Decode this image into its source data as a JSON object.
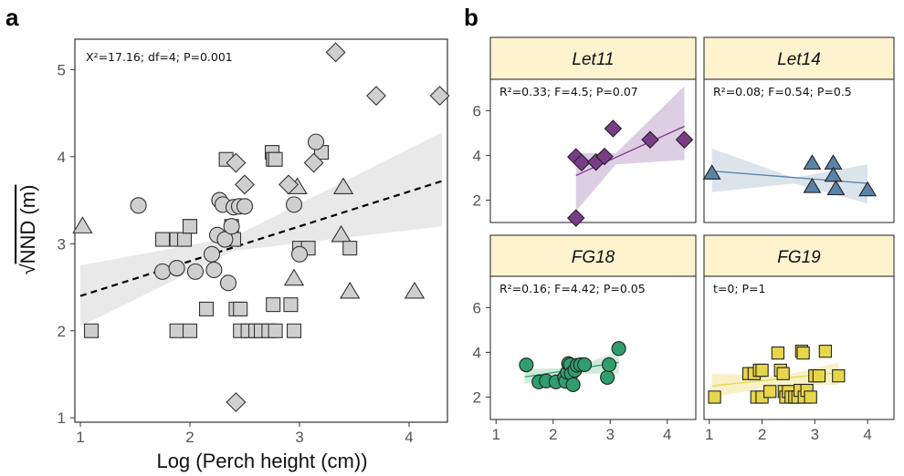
{
  "figure": {
    "panel_a_letter": "a",
    "panel_b_letter": "b"
  },
  "chart_data": [
    {
      "id": "a",
      "type": "scatter",
      "xlabel": "Log (Perch height (cm))",
      "ylabel": "NND (m)",
      "ylabel_prefix": "√",
      "xlim": [
        0.95,
        4.35
      ],
      "ylim": [
        0.95,
        5.35
      ],
      "xticks": [
        1,
        2,
        3,
        4
      ],
      "yticks": [
        1,
        2,
        3,
        4,
        5
      ],
      "grid": false,
      "annotation": "X²=17.16; df=4; P=0.001",
      "trend": {
        "intercept": 2.0,
        "slope": 0.4,
        "style": "dashed",
        "color": "#000000"
      },
      "ci_band": {
        "color": "#e5e5e5",
        "x": [
          1.0,
          2.4,
          4.3
        ],
        "lower": [
          2.05,
          2.92,
          3.2
        ],
        "upper": [
          2.75,
          3.08,
          4.28
        ]
      },
      "series": [
        {
          "shape": "triangle",
          "color": "#cfcfcf",
          "points": [
            [
              1.02,
              3.2
            ],
            [
              2.98,
              3.65
            ],
            [
              2.95,
              2.6
            ],
            [
              3.4,
              3.65
            ],
            [
              3.38,
              3.1
            ],
            [
              3.46,
              2.45
            ],
            [
              4.05,
              2.45
            ]
          ]
        },
        {
          "shape": "square",
          "color": "#cfcfcf",
          "points": [
            [
              1.1,
              2.0
            ],
            [
              1.75,
              3.05
            ],
            [
              1.88,
              3.05
            ],
            [
              1.95,
              3.05
            ],
            [
              1.88,
              2.0
            ],
            [
              2.0,
              3.2
            ],
            [
              2.0,
              3.2
            ],
            [
              2.0,
              2.0
            ],
            [
              2.15,
              2.25
            ],
            [
              2.33,
              3.97
            ],
            [
              2.38,
              3.2
            ],
            [
              2.4,
              3.05
            ],
            [
              2.42,
              2.25
            ],
            [
              2.46,
              2.25
            ],
            [
              2.46,
              2.0
            ],
            [
              2.53,
              2.0
            ],
            [
              2.6,
              2.0
            ],
            [
              2.65,
              2.0
            ],
            [
              2.72,
              2.0
            ],
            [
              2.78,
              2.0
            ],
            [
              2.95,
              2.0
            ],
            [
              2.75,
              4.05
            ],
            [
              2.76,
              3.97
            ],
            [
              2.78,
              3.97
            ],
            [
              2.92,
              2.3
            ],
            [
              2.76,
              2.3
            ],
            [
              3.0,
              2.95
            ],
            [
              3.08,
              2.95
            ],
            [
              3.2,
              4.05
            ],
            [
              3.46,
              2.95
            ]
          ]
        },
        {
          "shape": "circle",
          "color": "#cfcfcf",
          "points": [
            [
              1.53,
              3.44
            ],
            [
              1.75,
              2.68
            ],
            [
              1.88,
              2.72
            ],
            [
              2.05,
              2.68
            ],
            [
              2.2,
              2.88
            ],
            [
              2.22,
              2.7
            ],
            [
              2.25,
              3.1
            ],
            [
              2.27,
              3.5
            ],
            [
              2.3,
              3.45
            ],
            [
              2.32,
              3.05
            ],
            [
              2.35,
              2.55
            ],
            [
              2.38,
              3.2
            ],
            [
              2.4,
              3.42
            ],
            [
              2.45,
              3.43
            ],
            [
              2.5,
              3.43
            ],
            [
              2.95,
              3.45
            ],
            [
              3.0,
              2.88
            ],
            [
              3.15,
              4.17
            ]
          ]
        },
        {
          "shape": "diamond",
          "color": "#cfcfcf",
          "points": [
            [
              2.42,
              1.18
            ],
            [
              2.42,
              3.93
            ],
            [
              2.5,
              3.68
            ],
            [
              2.9,
              3.68
            ],
            [
              3.13,
              3.93
            ],
            [
              3.33,
              5.2
            ],
            [
              3.7,
              4.7
            ],
            [
              4.28,
              4.7
            ]
          ]
        }
      ]
    },
    {
      "id": "b",
      "type": "scatter",
      "facets": [
        {
          "strip_label": "Let11",
          "annotation": "R²=0.33; F=4.5; P=0.07",
          "shape": "diamond",
          "color": "#7a3c87",
          "fill_band": "#d7c6de",
          "line": {
            "x": [
              2.4,
              4.3
            ],
            "y": [
              3.1,
              5.3
            ]
          },
          "band": {
            "x": [
              2.4,
              3.1,
              4.3
            ],
            "lower": [
              1.5,
              3.6,
              3.8
            ],
            "upper": [
              4.1,
              4.1,
              7.1
            ]
          },
          "points": [
            [
              2.4,
              1.2
            ],
            [
              2.4,
              3.93
            ],
            [
              2.5,
              3.68
            ],
            [
              2.75,
              3.7
            ],
            [
              2.9,
              3.95
            ],
            [
              3.05,
              5.2
            ],
            [
              3.7,
              4.7
            ],
            [
              4.3,
              4.7
            ]
          ],
          "show_y_ticks": true,
          "show_x_ticks": false
        },
        {
          "strip_label": "Let14",
          "annotation": "R²=0.08; F=0.54; P=0.5",
          "shape": "triangle",
          "color": "#5b83a8",
          "fill_band": "#d5dfe8",
          "line": {
            "x": [
              1.05,
              4.0
            ],
            "y": [
              3.3,
              2.75
            ]
          },
          "band": {
            "x": [
              1.05,
              2.6,
              4.0
            ],
            "lower": [
              2.35,
              2.75,
              1.85
            ],
            "upper": [
              4.3,
              3.0,
              3.6
            ]
          },
          "points": [
            [
              1.05,
              3.2
            ],
            [
              2.95,
              3.65
            ],
            [
              2.95,
              2.6
            ],
            [
              3.35,
              3.65
            ],
            [
              3.35,
              3.1
            ],
            [
              3.4,
              2.5
            ],
            [
              4.0,
              2.45
            ]
          ],
          "show_y_ticks": false,
          "show_x_ticks": false
        },
        {
          "strip_label": "FG18",
          "annotation": "R²=0.16; F=4.42; P=0.05",
          "shape": "circle",
          "color": "#2f9e6e",
          "fill_band": "#c6e6d6",
          "line": {
            "x": [
              1.5,
              3.15
            ],
            "y": [
              2.9,
              3.55
            ]
          },
          "band": {
            "x": [
              1.5,
              2.35,
              3.15
            ],
            "lower": [
              2.6,
              3.05,
              3.05
            ],
            "upper": [
              3.25,
              3.3,
              4.05
            ]
          },
          "points": [
            [
              1.53,
              3.44
            ],
            [
              1.75,
              2.68
            ],
            [
              1.88,
              2.72
            ],
            [
              2.05,
              2.68
            ],
            [
              2.2,
              2.88
            ],
            [
              2.22,
              2.7
            ],
            [
              2.25,
              3.1
            ],
            [
              2.27,
              3.5
            ],
            [
              2.3,
              3.45
            ],
            [
              2.32,
              3.05
            ],
            [
              2.35,
              2.55
            ],
            [
              2.38,
              3.2
            ],
            [
              2.42,
              3.42
            ],
            [
              2.48,
              3.45
            ],
            [
              2.55,
              3.45
            ],
            [
              2.95,
              2.88
            ],
            [
              2.98,
              3.45
            ],
            [
              3.15,
              4.17
            ]
          ],
          "show_y_ticks": true,
          "show_x_ticks": true
        },
        {
          "strip_label": "FG19",
          "annotation": "t=0; P=1",
          "shape": "square",
          "color": "#e8d64a",
          "fill_band": "#f6eebb",
          "line": {
            "x": [
              1.05,
              3.45
            ],
            "y": [
              2.5,
              3.1
            ]
          },
          "band": {
            "x": [
              1.05,
              2.4,
              3.45
            ],
            "lower": [
              2.0,
              2.55,
              2.55
            ],
            "upper": [
              3.05,
              2.95,
              3.55
            ]
          },
          "points": [
            [
              1.1,
              2.0
            ],
            [
              1.75,
              3.05
            ],
            [
              1.85,
              3.05
            ],
            [
              1.9,
              2.0
            ],
            [
              1.95,
              3.2
            ],
            [
              2.0,
              2.0
            ],
            [
              2.0,
              3.2
            ],
            [
              2.15,
              2.25
            ],
            [
              2.3,
              3.97
            ],
            [
              2.35,
              3.2
            ],
            [
              2.4,
              3.05
            ],
            [
              2.42,
              2.25
            ],
            [
              2.45,
              2.0
            ],
            [
              2.5,
              2.25
            ],
            [
              2.55,
              2.0
            ],
            [
              2.62,
              2.0
            ],
            [
              2.68,
              2.0
            ],
            [
              2.72,
              2.3
            ],
            [
              2.75,
              4.05
            ],
            [
              2.78,
              3.97
            ],
            [
              2.8,
              2.0
            ],
            [
              2.85,
              2.3
            ],
            [
              2.92,
              2.0
            ],
            [
              3.0,
              2.95
            ],
            [
              3.08,
              2.95
            ],
            [
              3.2,
              4.05
            ],
            [
              3.45,
              2.95
            ]
          ],
          "show_y_ticks": false,
          "show_x_ticks": true
        }
      ],
      "xlim": [
        0.9,
        4.5
      ],
      "ylim": [
        1.0,
        7.4
      ],
      "xticks": [
        1,
        2,
        3,
        4
      ],
      "yticks": [
        2,
        4,
        6
      ],
      "strip_fill": "#fdf3cf",
      "grid": false
    }
  ]
}
